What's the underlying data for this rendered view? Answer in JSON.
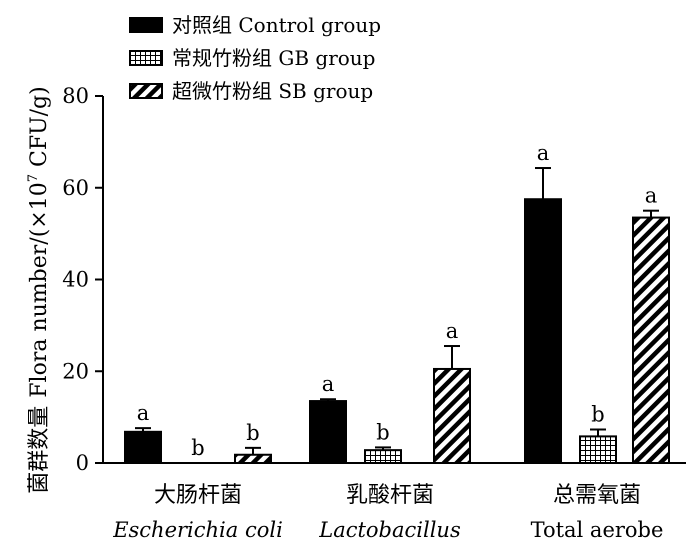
{
  "chart_data": {
    "type": "bar",
    "ylabel_cn": "菌群数量",
    "ylabel_en": "Flora number/(×10",
    "ylabel_exp": "7",
    "ylabel_unit": " CFU/g)",
    "ylim": [
      0,
      80
    ],
    "yticks": [
      "0",
      "20",
      "40",
      "60",
      "80"
    ],
    "categories": [
      {
        "cn": "大肠杆菌",
        "en": "Escherichia coli",
        "italic": true
      },
      {
        "cn": "乳酸杆菌",
        "en": "Lactobacillus",
        "italic": true
      },
      {
        "cn": "总需氧菌",
        "en": "Total aerobe",
        "italic": false
      }
    ],
    "series": [
      {
        "name": "对照组  Control group",
        "pattern": "solid",
        "values": [
          6.8,
          13.5,
          57.5
        ],
        "errors": [
          0.8,
          0.4,
          6.8
        ],
        "labels": [
          "a",
          "a",
          "a"
        ]
      },
      {
        "name": "常规竹粉组  GB group",
        "pattern": "grid",
        "values": [
          0,
          2.8,
          5.8
        ],
        "errors": [
          0,
          0.6,
          1.5
        ],
        "labels": [
          "b",
          "b",
          "b"
        ]
      },
      {
        "name": "超微竹粉组  SB group",
        "pattern": "diag",
        "values": [
          1.8,
          20.5,
          53.5
        ],
        "errors": [
          1.5,
          5.0,
          1.5
        ],
        "labels": [
          "b",
          "a",
          "a"
        ]
      }
    ],
    "legend_position": "top-left",
    "grid": false,
    "colors": {
      "bar": "#000000",
      "fill": "#ffffff"
    }
  }
}
